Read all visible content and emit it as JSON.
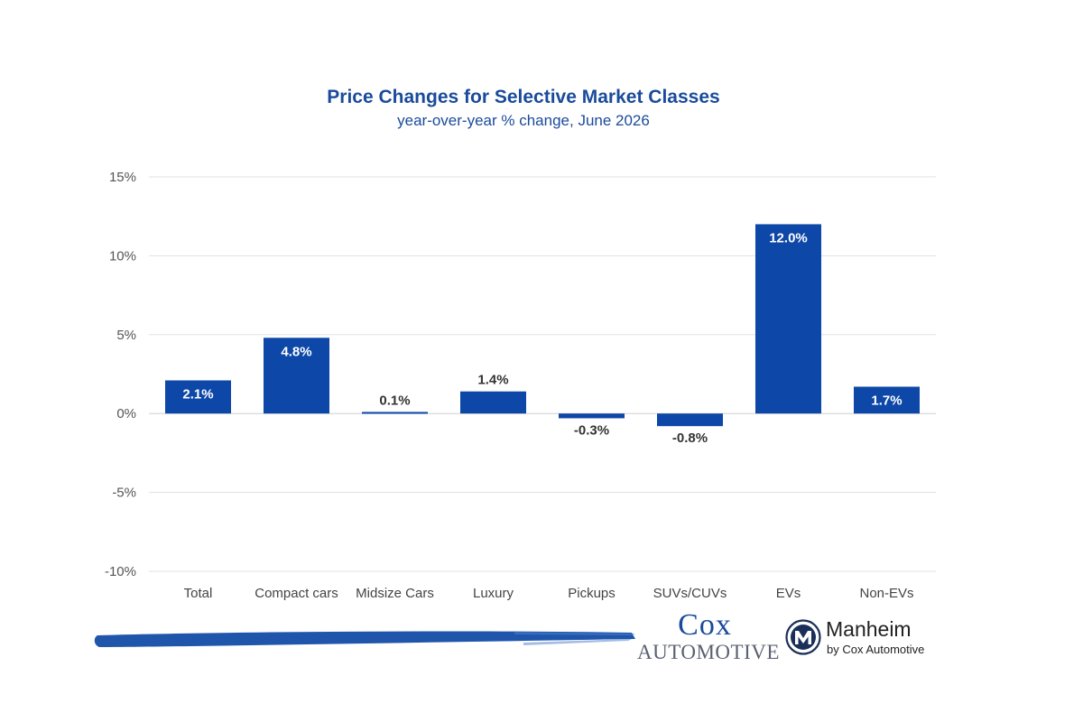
{
  "chart_data": {
    "type": "bar",
    "title": "Price Changes for Selective Market Classes",
    "subtitle": "year-over-year % change, June 2026",
    "categories": [
      "Total",
      "Compact cars",
      "Midsize Cars",
      "Luxury",
      "Pickups",
      "SUVs/CUVs",
      "EVs",
      "Non-EVs"
    ],
    "values": [
      2.1,
      4.8,
      0.1,
      1.4,
      -0.3,
      -0.8,
      12.0,
      1.7
    ],
    "value_labels": [
      "2.1%",
      "4.8%",
      "0.1%",
      "1.4%",
      "-0.3%",
      "-0.8%",
      "12.0%",
      "1.7%"
    ],
    "yticks": [
      15,
      10,
      5,
      0,
      -5,
      -10
    ],
    "ytick_labels": [
      "15%",
      "10%",
      "5%",
      "0%",
      "-5%",
      "-10%"
    ],
    "ylim": [
      -10,
      15
    ],
    "grid": true,
    "legend": "none",
    "bar_color": "#0d47a8"
  },
  "branding": {
    "cox_line1": "Cox",
    "cox_line2": "Automotive",
    "manheim_name": "Manheim",
    "manheim_sub": "by Cox Automotive",
    "brand_color": "#1a4b9b"
  }
}
